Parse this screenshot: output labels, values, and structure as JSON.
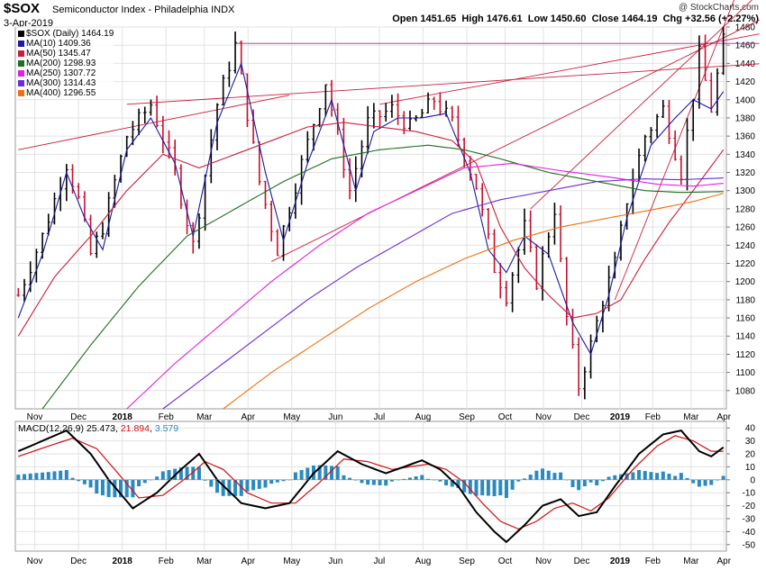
{
  "header": {
    "symbol": "$SOX",
    "name": "Semiconductor Index - Philadelphia INDX",
    "date": "3-Apr-2019",
    "watermark": "@ StockCharts.com",
    "quote": {
      "open_label": "Open",
      "open": "1451.65",
      "high_label": "High",
      "high": "1476.61",
      "low_label": "Low",
      "low": "1450.60",
      "close_label": "Close",
      "close": "1464.19",
      "chg_label": "Chg",
      "chg": "+32.56 (+2.27%)"
    }
  },
  "legend": [
    {
      "label": "$SOX (Daily) 1464.19",
      "color": "#000000"
    },
    {
      "label": "MA(10) 1409.36",
      "color": "#1a1aa0"
    },
    {
      "label": "MA(50) 1345.47",
      "color": "#c81e3c"
    },
    {
      "label": "MA(200) 1298.93",
      "color": "#1e6e1e"
    },
    {
      "label": "MA(250) 1307.72",
      "color": "#e020e0"
    },
    {
      "label": "MA(300) 1314.43",
      "color": "#6a2cd6"
    },
    {
      "label": "MA(400) 1296.55",
      "color": "#f07010"
    }
  ],
  "macd_legend": {
    "label": "MACD(12,26,9)",
    "macd": "25.473",
    "signal": "21.894",
    "hist": "3.579",
    "colors": {
      "macd": "#000000",
      "signal": "#d01010",
      "hist": "#2a8ac0"
    }
  },
  "chart_data": [
    {
      "type": "line",
      "title": "$SOX Semiconductor Index - Philadelphia INDX",
      "period": "Daily",
      "x_ticks": [
        "Nov",
        "Dec",
        "2018",
        "Feb",
        "Mar",
        "Apr",
        "May",
        "Jun",
        "Jul",
        "Aug",
        "Sep",
        "Oct",
        "Nov",
        "Dec",
        "2019",
        "Feb",
        "Mar",
        "Apr"
      ],
      "x_ticks_bold": [
        "2018",
        "2019"
      ],
      "ylim": [
        1060,
        1480
      ],
      "y_ticks": [
        1080,
        1100,
        1120,
        1140,
        1160,
        1180,
        1200,
        1220,
        1240,
        1260,
        1280,
        1300,
        1320,
        1340,
        1360,
        1380,
        1400,
        1420,
        1440,
        1460,
        1480
      ],
      "grid": true,
      "series": [
        {
          "name": "$SOX (Daily)",
          "type": "ohlc",
          "last": 1464.19,
          "anchors": [
            [
              0,
              1185
            ],
            [
              4,
              1250
            ],
            [
              8,
              1330
            ],
            [
              10,
              1290
            ],
            [
              12,
              1230
            ],
            [
              14,
              1260
            ],
            [
              18,
              1360
            ],
            [
              22,
              1395
            ],
            [
              26,
              1320
            ],
            [
              29,
              1240
            ],
            [
              33,
              1395
            ],
            [
              36,
              1460
            ],
            [
              40,
              1310
            ],
            [
              43,
              1235
            ],
            [
              47,
              1330
            ],
            [
              51,
              1420
            ],
            [
              55,
              1300
            ],
            [
              58,
              1375
            ],
            [
              62,
              1390
            ],
            [
              65,
              1370
            ],
            [
              69,
              1400
            ],
            [
              72,
              1375
            ],
            [
              76,
              1305
            ],
            [
              79,
              1215
            ],
            [
              81,
              1185
            ],
            [
              84,
              1260
            ],
            [
              86,
              1200
            ],
            [
              89,
              1280
            ],
            [
              91,
              1160
            ],
            [
              93,
              1085
            ],
            [
              95,
              1130
            ],
            [
              97,
              1180
            ],
            [
              99,
              1220
            ],
            [
              101,
              1290
            ],
            [
              104,
              1360
            ],
            [
              107,
              1390
            ],
            [
              110,
              1320
            ],
            [
              113,
              1450
            ],
            [
              115,
              1390
            ],
            [
              117,
              1464
            ]
          ]
        },
        {
          "name": "MA(10)",
          "last": 1409.36,
          "anchors": [
            [
              0,
              1160
            ],
            [
              4,
              1230
            ],
            [
              8,
              1320
            ],
            [
              11,
              1270
            ],
            [
              14,
              1235
            ],
            [
              18,
              1345
            ],
            [
              22,
              1380
            ],
            [
              26,
              1330
            ],
            [
              29,
              1250
            ],
            [
              33,
              1375
            ],
            [
              37,
              1440
            ],
            [
              41,
              1320
            ],
            [
              44,
              1245
            ],
            [
              48,
              1330
            ],
            [
              52,
              1400
            ],
            [
              56,
              1300
            ],
            [
              59,
              1365
            ],
            [
              63,
              1380
            ],
            [
              67,
              1380
            ],
            [
              71,
              1385
            ],
            [
              75,
              1320
            ],
            [
              78,
              1235
            ],
            [
              81,
              1210
            ],
            [
              84,
              1250
            ],
            [
              88,
              1230
            ],
            [
              92,
              1155
            ],
            [
              95,
              1120
            ],
            [
              98,
              1185
            ],
            [
              101,
              1270
            ],
            [
              105,
              1350
            ],
            [
              109,
              1380
            ],
            [
              112,
              1400
            ],
            [
              115,
              1390
            ],
            [
              117,
              1409
            ]
          ]
        },
        {
          "name": "MA(50)",
          "last": 1345.47,
          "anchors": [
            [
              0,
              1140
            ],
            [
              6,
              1205
            ],
            [
              12,
              1250
            ],
            [
              18,
              1300
            ],
            [
              24,
              1340
            ],
            [
              30,
              1325
            ],
            [
              36,
              1340
            ],
            [
              42,
              1355
            ],
            [
              48,
              1370
            ],
            [
              54,
              1375
            ],
            [
              60,
              1370
            ],
            [
              66,
              1365
            ],
            [
              72,
              1355
            ],
            [
              76,
              1330
            ],
            [
              80,
              1260
            ],
            [
              84,
              1215
            ],
            [
              88,
              1185
            ],
            [
              92,
              1160
            ],
            [
              96,
              1165
            ],
            [
              100,
              1180
            ],
            [
              104,
              1225
            ],
            [
              108,
              1265
            ],
            [
              112,
              1300
            ],
            [
              117,
              1345
            ]
          ]
        },
        {
          "name": "MA(200)",
          "last": 1298.93,
          "anchors": [
            [
              4,
              1060
            ],
            [
              12,
              1130
            ],
            [
              20,
              1195
            ],
            [
              28,
              1250
            ],
            [
              36,
              1280
            ],
            [
              44,
              1310
            ],
            [
              52,
              1335
            ],
            [
              60,
              1345
            ],
            [
              68,
              1350
            ],
            [
              74,
              1345
            ],
            [
              80,
              1335
            ],
            [
              88,
              1320
            ],
            [
              96,
              1310
            ],
            [
              104,
              1300
            ],
            [
              110,
              1298
            ],
            [
              117,
              1299
            ]
          ]
        },
        {
          "name": "MA(250)",
          "last": 1307.72,
          "anchors": [
            [
              18,
              1060
            ],
            [
              26,
              1110
            ],
            [
              34,
              1155
            ],
            [
              42,
              1200
            ],
            [
              50,
              1240
            ],
            [
              58,
              1275
            ],
            [
              66,
              1300
            ],
            [
              74,
              1325
            ],
            [
              82,
              1330
            ],
            [
              90,
              1322
            ],
            [
              98,
              1315
            ],
            [
              106,
              1307
            ],
            [
              112,
              1305
            ],
            [
              117,
              1308
            ]
          ]
        },
        {
          "name": "MA(300)",
          "last": 1314.43,
          "anchors": [
            [
              24,
              1060
            ],
            [
              32,
              1100
            ],
            [
              40,
              1140
            ],
            [
              48,
              1180
            ],
            [
              56,
              1215
            ],
            [
              64,
              1245
            ],
            [
              72,
              1275
            ],
            [
              80,
              1290
            ],
            [
              88,
              1300
            ],
            [
              96,
              1310
            ],
            [
              104,
              1313
            ],
            [
              110,
              1312
            ],
            [
              117,
              1314
            ]
          ]
        },
        {
          "name": "MA(400)",
          "last": 1296.55,
          "anchors": [
            [
              34,
              1060
            ],
            [
              42,
              1100
            ],
            [
              50,
              1135
            ],
            [
              58,
              1170
            ],
            [
              66,
              1200
            ],
            [
              74,
              1225
            ],
            [
              82,
              1245
            ],
            [
              90,
              1260
            ],
            [
              98,
              1270
            ],
            [
              106,
              1280
            ],
            [
              112,
              1288
            ],
            [
              117,
              1297
            ]
          ]
        }
      ]
    },
    {
      "type": "line",
      "title": "MACD(12,26,9)",
      "ylim": [
        -55,
        45
      ],
      "y_ticks": [
        -50,
        -40,
        -30,
        -20,
        -10,
        0,
        10,
        20,
        30,
        40
      ],
      "x_ticks": [
        "Nov",
        "Dec",
        "2018",
        "Feb",
        "Mar",
        "Apr",
        "May",
        "Jun",
        "Jul",
        "Aug",
        "Sep",
        "Oct",
        "Nov",
        "Dec",
        "2019",
        "Feb",
        "Mar",
        "Apr"
      ],
      "series": [
        {
          "name": "MACD",
          "last": 25.473,
          "anchors": [
            [
              0,
              22
            ],
            [
              5,
              32
            ],
            [
              8,
              38
            ],
            [
              12,
              20
            ],
            [
              15,
              0
            ],
            [
              19,
              -22
            ],
            [
              23,
              -10
            ],
            [
              27,
              8
            ],
            [
              30,
              20
            ],
            [
              33,
              0
            ],
            [
              37,
              -18
            ],
            [
              41,
              -22
            ],
            [
              45,
              -18
            ],
            [
              49,
              5
            ],
            [
              53,
              22
            ],
            [
              57,
              12
            ],
            [
              61,
              5
            ],
            [
              64,
              10
            ],
            [
              67,
              15
            ],
            [
              70,
              8
            ],
            [
              73,
              -5
            ],
            [
              76,
              -25
            ],
            [
              79,
              -40
            ],
            [
              81,
              -48
            ],
            [
              84,
              -35
            ],
            [
              87,
              -20
            ],
            [
              90,
              -15
            ],
            [
              93,
              -28
            ],
            [
              96,
              -25
            ],
            [
              99,
              -5
            ],
            [
              103,
              20
            ],
            [
              107,
              35
            ],
            [
              110,
              38
            ],
            [
              113,
              22
            ],
            [
              115,
              18
            ],
            [
              117,
              25
            ]
          ]
        },
        {
          "name": "Signal",
          "last": 21.894,
          "anchors": [
            [
              0,
              18
            ],
            [
              5,
              26
            ],
            [
              9,
              32
            ],
            [
              13,
              24
            ],
            [
              16,
              8
            ],
            [
              20,
              -14
            ],
            [
              24,
              -12
            ],
            [
              28,
              2
            ],
            [
              31,
              14
            ],
            [
              34,
              8
            ],
            [
              38,
              -10
            ],
            [
              42,
              -18
            ],
            [
              46,
              -18
            ],
            [
              50,
              -2
            ],
            [
              54,
              16
            ],
            [
              58,
              14
            ],
            [
              62,
              8
            ],
            [
              65,
              10
            ],
            [
              68,
              12
            ],
            [
              71,
              8
            ],
            [
              74,
              -2
            ],
            [
              77,
              -18
            ],
            [
              80,
              -32
            ],
            [
              83,
              -38
            ],
            [
              86,
              -32
            ],
            [
              89,
              -22
            ],
            [
              92,
              -18
            ],
            [
              95,
              -24
            ],
            [
              98,
              -14
            ],
            [
              102,
              8
            ],
            [
              106,
              26
            ],
            [
              109,
              34
            ],
            [
              112,
              30
            ],
            [
              115,
              22
            ],
            [
              117,
              22
            ]
          ]
        },
        {
          "name": "Histogram",
          "type": "bar",
          "last": 3.579
        }
      ]
    }
  ]
}
